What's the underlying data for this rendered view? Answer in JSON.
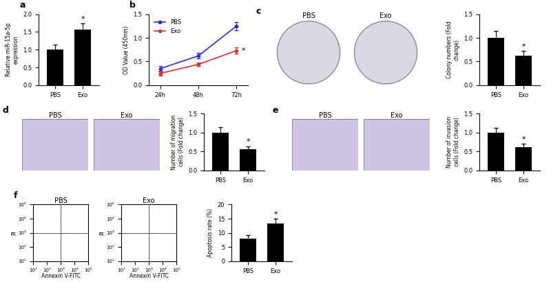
{
  "chart_data": [
    {
      "type": "bar",
      "panel": "a",
      "categories": [
        "PBS",
        "Exo"
      ],
      "values": [
        1.0,
        1.57
      ],
      "errors": [
        0.15,
        0.17
      ],
      "color": "#000000",
      "ylabel": "Relative miR-15a-5p expression",
      "ylim": [
        0,
        2.0
      ],
      "yticks": [
        {
          "value": 0,
          "label": "0.0"
        },
        {
          "value": 0.5,
          "label": "0.5"
        },
        {
          "value": 1.0,
          "label": "1.0"
        },
        {
          "value": 1.5,
          "label": "1.5"
        },
        {
          "value": 2.0,
          "label": "2.0"
        }
      ],
      "annotations": [
        {
          "text": "*",
          "category": "Exo"
        }
      ]
    },
    {
      "type": "line",
      "panel": "b",
      "categories": [
        "24h",
        "48h",
        "72h"
      ],
      "ylabel": "OD Value (450nm)",
      "ylim": [
        0,
        1.5
      ],
      "yticks": [
        {
          "value": 0,
          "label": "0.0"
        },
        {
          "value": 0.5,
          "label": "0.5"
        },
        {
          "value": 1.0,
          "label": "1.0"
        },
        {
          "value": 1.5,
          "label": "1.5"
        }
      ],
      "legend": "upper left",
      "series": [
        {
          "name": "PBS",
          "color": "#2b2bd9",
          "marker": "o",
          "values": [
            0.35,
            0.62,
            1.25
          ],
          "errors": [
            0.06,
            0.06,
            0.09
          ]
        },
        {
          "name": "Exo",
          "color": "#e03030",
          "marker": "o",
          "values": [
            0.25,
            0.44,
            0.73
          ],
          "errors": [
            0.05,
            0.04,
            0.07
          ]
        }
      ],
      "annotations": [
        {
          "text": "*",
          "category": "72h",
          "series": "Exo"
        }
      ]
    },
    {
      "type": "photo",
      "panel": "c",
      "title": "PBS"
    },
    {
      "type": "photo",
      "title": "Exo"
    },
    {
      "type": "bar",
      "categories": [
        "PBS",
        "Exo"
      ],
      "values": [
        1.0,
        0.62
      ],
      "errors": [
        0.15,
        0.1
      ],
      "color": "#000000",
      "ylabel": "Colony numbers (Fold change)",
      "ylim": [
        0,
        1.5
      ],
      "yticks": [
        {
          "value": 0,
          "label": "0.0"
        },
        {
          "value": 0.5,
          "label": "0.5"
        },
        {
          "value": 1.0,
          "label": "1.0"
        },
        {
          "value": 1.5,
          "label": "1.5"
        }
      ],
      "annotations": [
        {
          "text": "*",
          "category": "Exo"
        }
      ]
    },
    {
      "type": "micrograph",
      "panel": "d",
      "title": "PBS"
    },
    {
      "type": "micrograph",
      "title": "Exo"
    },
    {
      "type": "bar",
      "categories": [
        "PBS",
        "Exo"
      ],
      "values": [
        1.0,
        0.56
      ],
      "errors": [
        0.14,
        0.08
      ],
      "color": "#000000",
      "ylabel": "Number of migration cells (Fold change)",
      "ylim": [
        0,
        1.5
      ],
      "yticks": [
        {
          "value": 0,
          "label": "0.0"
        },
        {
          "value": 0.5,
          "label": "0.5"
        },
        {
          "value": 1.0,
          "label": "1.0"
        },
        {
          "value": 1.5,
          "label": "1.5"
        }
      ],
      "annotations": [
        {
          "text": "*",
          "category": "Exo"
        }
      ]
    },
    {
      "type": "micrograph",
      "panel": "e",
      "title": "PBS"
    },
    {
      "type": "micrograph",
      "title": "Exo"
    },
    {
      "type": "bar",
      "categories": [
        "PBS",
        "Exo"
      ],
      "values": [
        1.0,
        0.62
      ],
      "errors": [
        0.13,
        0.08
      ],
      "color": "#000000",
      "ylabel": "Number of invasion cells (Fold change)",
      "ylim": [
        0,
        1.5
      ],
      "yticks": [
        {
          "value": 0,
          "label": "0.0"
        },
        {
          "value": 0.5,
          "label": "0.5"
        },
        {
          "value": 1.0,
          "label": "1.0"
        },
        {
          "value": 1.5,
          "label": "1.5"
        }
      ],
      "annotations": [
        {
          "text": "*",
          "category": "Exo"
        }
      ]
    },
    {
      "type": "flow",
      "panel": "f",
      "title": "PBS",
      "xlabel": "Annexin V-FITC",
      "ylabel": "PI",
      "log": true,
      "xlim": [
        10,
        100000
      ],
      "ylim": [
        10,
        100000
      ],
      "xticks": [
        {
          "value": 10,
          "label": "10¹"
        },
        {
          "value": 100,
          "label": "10²"
        },
        {
          "value": 1000,
          "label": "10³"
        },
        {
          "value": 10000,
          "label": "10⁴"
        },
        {
          "value": 100000,
          "label": "10⁵"
        }
      ],
      "yticks": [
        {
          "value": 10,
          "label": "10¹"
        },
        {
          "value": 100,
          "label": "10²"
        },
        {
          "value": 1000,
          "label": "10³"
        },
        {
          "value": 10000,
          "label": "10⁴"
        },
        {
          "value": 100000,
          "label": "10⁵"
        }
      ]
    },
    {
      "type": "flow",
      "title": "Exo",
      "xlabel": "Annexin V-FITC",
      "ylabel": "PI",
      "log": true,
      "xlim": [
        10,
        100000
      ],
      "ylim": [
        10,
        100000
      ],
      "xticks": [
        {
          "value": 10,
          "label": "10¹"
        },
        {
          "value": 100,
          "label": "10²"
        },
        {
          "value": 1000,
          "label": "10³"
        },
        {
          "value": 10000,
          "label": "10⁴"
        },
        {
          "value": 100000,
          "label": "10⁵"
        }
      ],
      "yticks": [
        {
          "value": 10,
          "label": "10¹"
        },
        {
          "value": 100,
          "label": "10²"
        },
        {
          "value": 1000,
          "label": "10³"
        },
        {
          "value": 10000,
          "label": "10⁴"
        },
        {
          "value": 100000,
          "label": "10⁵"
        }
      ]
    },
    {
      "type": "bar",
      "categories": [
        "PBS",
        "Exo"
      ],
      "values": [
        8.0,
        13.4
      ],
      "errors": [
        1.2,
        1.5
      ],
      "color": "#000000",
      "ylabel": "Apoptosis rate (%)",
      "ylim": [
        0,
        20
      ],
      "yticks": [
        0,
        5,
        10,
        15,
        20
      ],
      "annotations": [
        {
          "text": "*",
          "category": "Exo"
        }
      ]
    }
  ]
}
